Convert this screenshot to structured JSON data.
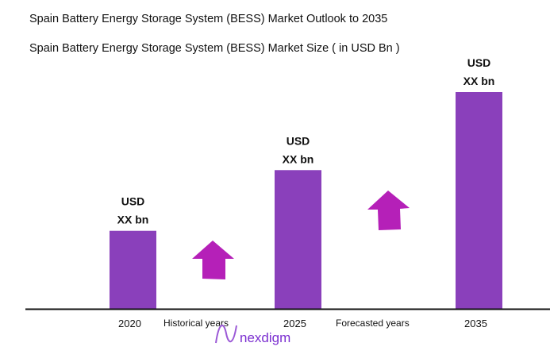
{
  "chart_data": {
    "type": "bar",
    "title": "Spain Battery Energy Storage System (BESS) Market Outlook to 2035",
    "subtitle": "Spain Battery Energy Storage System (BESS) Market Size ( in USD Bn )",
    "categories": [
      "2020",
      "2025",
      "2035"
    ],
    "relative_values": [
      0.36,
      0.64,
      1.0
    ],
    "data_labels": [
      [
        "USD",
        "XX bn"
      ],
      [
        "USD",
        "XX bn"
      ],
      [
        "USD",
        "XX bn"
      ]
    ],
    "annotations": [
      "Historical years",
      "Forecasted years"
    ],
    "grid": false,
    "colors": {
      "bar": "#8a40bb",
      "arrow": "#b520b8",
      "axis": "#111111"
    }
  },
  "logo": {
    "text": "nexdigm",
    "color": "#7b2fd0"
  }
}
